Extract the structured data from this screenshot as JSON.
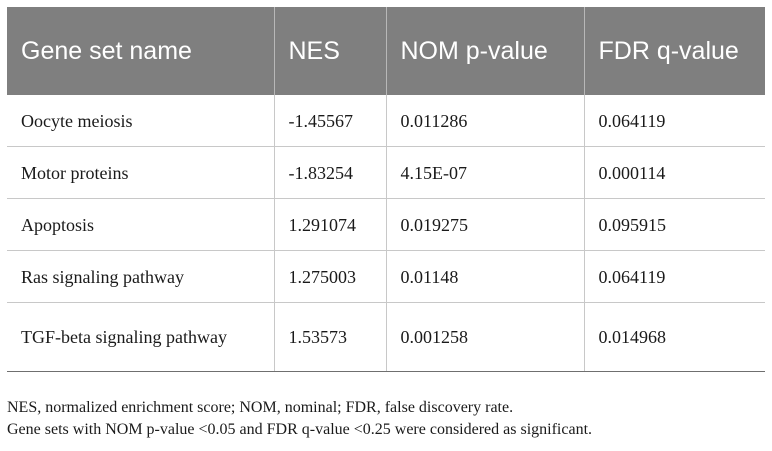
{
  "table": {
    "headers": [
      "Gene set name",
      "NES",
      "NOM p-value",
      "FDR q-value"
    ],
    "rows": [
      [
        "Oocyte meiosis",
        "-1.45567",
        "0.011286",
        "0.064119"
      ],
      [
        "Motor proteins",
        "-1.83254",
        "4.15E-07",
        "0.000114"
      ],
      [
        "Apoptosis",
        "1.291074",
        "0.019275",
        "0.095915"
      ],
      [
        "Ras signaling pathway",
        "1.275003",
        "0.01148",
        "0.064119"
      ],
      [
        "TGF-beta signaling pathway",
        "1.53573",
        "0.001258",
        "0.014968"
      ]
    ],
    "header_bg_color": "#7f7f7f"
  },
  "footnotes": [
    "NES, normalized enrichment score; NOM, nominal; FDR, false discovery rate.",
    "Gene sets with NOM p-value <0.05 and FDR q-value <0.25 were considered as significant."
  ]
}
